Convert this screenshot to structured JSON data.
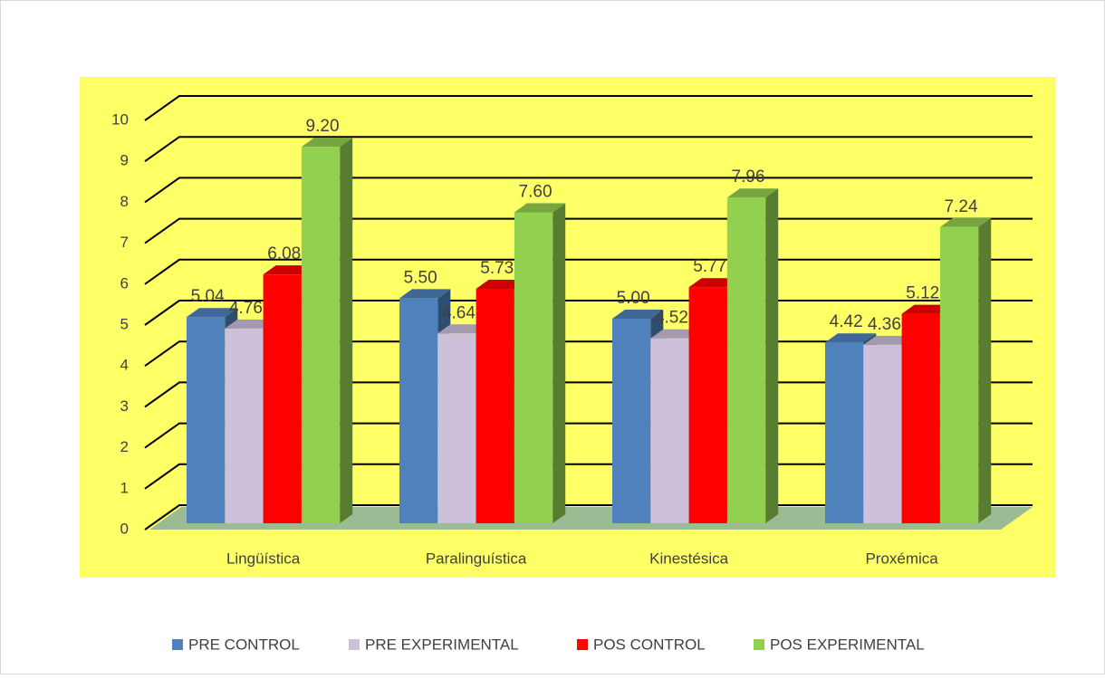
{
  "chart_data": {
    "type": "bar3d",
    "categories": [
      "Lingüística",
      "Paralinguística",
      "Kinestésica",
      "Proxémica"
    ],
    "series": [
      {
        "name": "PRE CONTROL",
        "color": "#4f81bd",
        "values": [
          5.04,
          5.5,
          5.0,
          4.42
        ],
        "value_labels": [
          "5.04",
          "5.50",
          "5.00",
          "4.42"
        ]
      },
      {
        "name": "PRE EXPERIMENTAL",
        "color": "#ccc0da",
        "values": [
          4.76,
          4.64,
          4.52,
          4.36
        ],
        "value_labels": [
          "4.76",
          "4.64",
          "4.52",
          "4.36"
        ]
      },
      {
        "name": "POS CONTROL",
        "color": "#ff0000",
        "values": [
          6.08,
          5.73,
          5.77,
          5.12
        ],
        "value_labels": [
          "6.08",
          "5.73",
          "5.77",
          "5.12"
        ]
      },
      {
        "name": "POS EXPERIMENTAL",
        "color": "#92d050",
        "values": [
          9.2,
          7.6,
          7.96,
          7.24
        ],
        "value_labels": [
          "9.20",
          "7.60",
          "7.96",
          "7.24"
        ]
      }
    ],
    "ylim": [
      0,
      10
    ],
    "yticks": [
      0,
      1,
      2,
      3,
      4,
      5,
      6,
      7,
      8,
      9,
      10
    ],
    "grid": true,
    "legend": "bottom"
  }
}
